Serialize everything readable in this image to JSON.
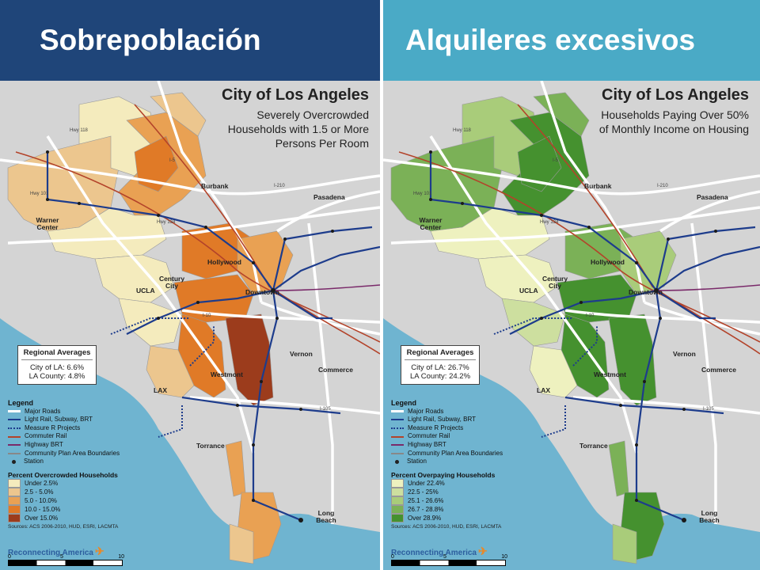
{
  "left": {
    "header": "Sobrepoblación",
    "map_title": "City of Los Angeles",
    "map_subtitle": "Severely Overcrowded Households with 1.5 or More Persons Per Room",
    "averages": {
      "heading": "Regional Averages",
      "city": "City of LA: 6.6%",
      "county": "LA County: 4.8%"
    },
    "legend_sub": "Percent Overcrowded Households",
    "classes": [
      {
        "label": "Under 2.5%",
        "color": "#f4ebbd"
      },
      {
        "label": "2.5 - 5.0%",
        "color": "#ecc68e"
      },
      {
        "label": "5.0 - 10.0%",
        "color": "#e9a153"
      },
      {
        "label": "10.0 - 15.0%",
        "color": "#e07a27"
      },
      {
        "label": "Over 15.0%",
        "color": "#9c3c1c"
      }
    ]
  },
  "right": {
    "header": "Alquileres excesivos",
    "map_title": "City of Los Angeles",
    "map_subtitle": "Households Paying Over 50% of Monthly Income on Housing",
    "averages": {
      "heading": "Regional Averages",
      "city": "City of LA: 26.7%",
      "county": "LA County: 24.2%"
    },
    "legend_sub": "Percent Overpaying Households",
    "classes": [
      {
        "label": "Under 22.4%",
        "color": "#eef1bf"
      },
      {
        "label": "22.5 - 25%",
        "color": "#cddf9f"
      },
      {
        "label": "25.1 - 26.6%",
        "color": "#a9cc7a"
      },
      {
        "label": "26.7 - 28.8%",
        "color": "#7bb157"
      },
      {
        "label": "Over 28.9%",
        "color": "#45912f"
      }
    ]
  },
  "legend": {
    "heading": "Legend",
    "items": [
      {
        "label": "Major Roads",
        "color": "#ffffff",
        "style": "solid"
      },
      {
        "label": "Light Rail, Subway, BRT",
        "color": "#1d3c8c",
        "style": "solid"
      },
      {
        "label": "Measure R Projects",
        "color": "#1d3c8c",
        "style": "dotted"
      },
      {
        "label": "Commuter Rail",
        "color": "#b3432a",
        "style": "solid"
      },
      {
        "label": "Highway BRT",
        "color": "#7a2a6a",
        "style": "solid"
      },
      {
        "label": "Community Plan Area Boundaries",
        "color": "#888888",
        "style": "solid"
      }
    ],
    "station": "Station"
  },
  "sources": "Sources: ACS 2006-2010, HUD, ESRI, LACMTA",
  "brand": "Reconnecting America",
  "scale": {
    "n0": "0",
    "n5": "5",
    "n10": "10",
    "unit": "mi"
  },
  "places": {
    "burbank": "Burbank",
    "pasadena": "Pasadena",
    "warner": "Warner Center",
    "hollywood": "Hollywood",
    "century": "Century City",
    "ucla": "UCLA",
    "downtown": "Downtown",
    "vernon": "Vernon",
    "commerce": "Commerce",
    "westmont": "Westmont",
    "lax": "LAX",
    "torrance": "Torrance",
    "longbeach": "Long Beach"
  },
  "highways": {
    "h118": "Hwy 118",
    "h101": "Hwy 101",
    "i5": "I-5",
    "i210": "I-210",
    "i405": "I-405",
    "i10": "I-10",
    "i105": "I-105",
    "i710": "I-710",
    "h134": "Hwy 134",
    "h170": "Hwy 170"
  },
  "colors": {
    "ocean": "#6fb4d0",
    "land": "#d4d4d4",
    "road": "#ffffff",
    "rail": "#1d3c8c",
    "commuter": "#b3432a",
    "hwy_brt": "#7a2a6a"
  }
}
